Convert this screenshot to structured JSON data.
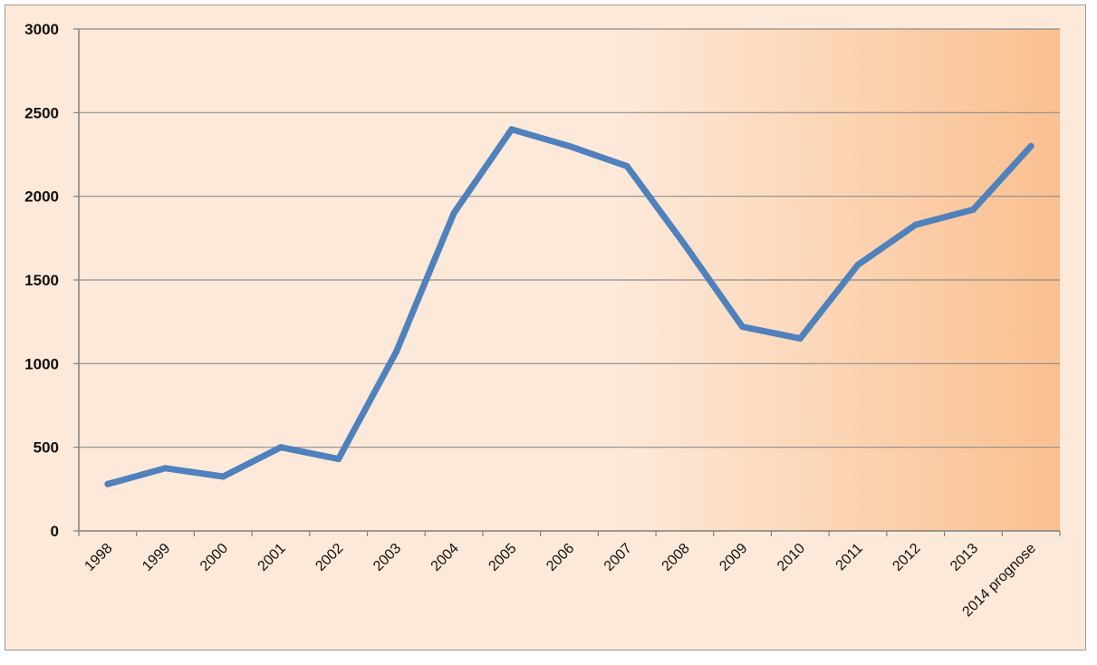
{
  "colors": {
    "background": "#fde9d9",
    "gradient_end": "#fac090",
    "line": "#4f81bd",
    "gridline": "#8c8c8c",
    "axis": "#7f7f7f"
  },
  "chart_data": {
    "type": "line",
    "categories": [
      "1998",
      "1999",
      "2000",
      "2001",
      "2002",
      "2003",
      "2004",
      "2005",
      "2006",
      "2007",
      "2008",
      "2009",
      "2010",
      "2011",
      "2012",
      "2013",
      "2014 prognose"
    ],
    "series": [
      {
        "values": [
          280,
          375,
          325,
          500,
          430,
          1070,
          1900,
          2400,
          2300,
          2180,
          1710,
          1220,
          1150,
          1590,
          1830,
          1920,
          2300
        ]
      }
    ],
    "ylim": [
      0,
      3000
    ],
    "yticks": [
      0,
      500,
      1000,
      1500,
      2000,
      2500,
      3000
    ],
    "ytick_labels": [
      "0",
      "500",
      "1000",
      "1500",
      "2000",
      "2500",
      "3000"
    ],
    "grid": true,
    "legend": "none"
  }
}
